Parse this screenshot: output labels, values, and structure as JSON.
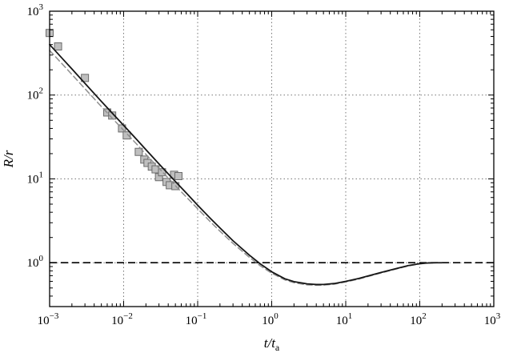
{
  "figure": {
    "background": "#ffffff",
    "frame_color": "#000000",
    "grid_color": "#777777"
  },
  "chart_data": {
    "type": "line",
    "title": "",
    "xlabel": {
      "base": "t/t",
      "sub": "a"
    },
    "ylabel": {
      "base": "R/r",
      "sub": ""
    },
    "x_scale": "log",
    "y_scale": "log",
    "xlim": [
      0.001,
      1000
    ],
    "ylim": [
      0.3,
      1000
    ],
    "x_tick_exponents": [
      -3,
      -2,
      -1,
      0,
      1,
      2,
      3
    ],
    "y_tick_exponents": [
      0,
      1,
      2,
      3
    ],
    "grid": "dotted-at-decades",
    "legend": "none",
    "reference_line": {
      "y": 1,
      "color": "#000000",
      "dash": "9 5",
      "width": 1.6
    },
    "series": [
      {
        "name": "scatter-experimental-squares",
        "type": "scatter",
        "marker": "square",
        "marker_size": 9,
        "fill": "#bfbfbf",
        "edge": "#6b6b6b",
        "points": [
          [
            0.001,
            550
          ],
          [
            0.0013,
            380
          ],
          [
            0.003,
            160
          ],
          [
            0.006,
            62
          ],
          [
            0.007,
            57
          ],
          [
            0.0095,
            40
          ],
          [
            0.011,
            33
          ],
          [
            0.016,
            21
          ],
          [
            0.019,
            17
          ],
          [
            0.021,
            15.5
          ],
          [
            0.024,
            14
          ],
          [
            0.027,
            13
          ],
          [
            0.03,
            10.5
          ],
          [
            0.033,
            12
          ],
          [
            0.038,
            9.2
          ],
          [
            0.042,
            8.4
          ],
          [
            0.048,
            11.2
          ],
          [
            0.05,
            8.2
          ],
          [
            0.055,
            10.8
          ]
        ]
      },
      {
        "name": "model-dashed-gray",
        "type": "line",
        "style": "dashed",
        "color": "#8f8f8f",
        "width": 1.5,
        "dash": "7 4",
        "points": [
          [
            0.001,
            340
          ],
          [
            0.0015,
            232
          ],
          [
            0.002,
            176
          ],
          [
            0.003,
            119
          ],
          [
            0.005,
            73
          ],
          [
            0.007,
            53
          ],
          [
            0.01,
            38
          ],
          [
            0.015,
            26
          ],
          [
            0.02,
            19.6
          ],
          [
            0.03,
            13.4
          ],
          [
            0.05,
            8.3
          ],
          [
            0.07,
            6.1
          ],
          [
            0.1,
            4.4
          ],
          [
            0.15,
            3.05
          ],
          [
            0.2,
            2.38
          ],
          [
            0.3,
            1.7
          ],
          [
            0.5,
            1.16
          ],
          [
            0.7,
            0.92
          ],
          [
            1.0,
            0.75
          ],
          [
            1.5,
            0.625
          ],
          [
            2.0,
            0.578
          ],
          [
            3.0,
            0.545
          ],
          [
            4.0,
            0.538
          ],
          [
            5.0,
            0.54
          ],
          [
            7.0,
            0.555
          ],
          [
            10,
            0.59
          ],
          [
            15,
            0.638
          ],
          [
            20,
            0.685
          ],
          [
            30,
            0.755
          ],
          [
            50,
            0.85
          ],
          [
            70,
            0.915
          ],
          [
            100,
            0.968
          ],
          [
            130,
            0.99
          ],
          [
            170,
            1.0
          ],
          [
            200,
            1.0
          ]
        ]
      },
      {
        "name": "model-solid-black",
        "type": "line",
        "style": "solid",
        "color": "#161616",
        "width": 1.8,
        "dash": "",
        "points": [
          [
            0.001,
            400
          ],
          [
            0.0015,
            270
          ],
          [
            0.002,
            205
          ],
          [
            0.003,
            138
          ],
          [
            0.005,
            84
          ],
          [
            0.007,
            61
          ],
          [
            0.01,
            43.5
          ],
          [
            0.015,
            29.5
          ],
          [
            0.02,
            22.3
          ],
          [
            0.03,
            15.1
          ],
          [
            0.05,
            9.3
          ],
          [
            0.07,
            6.8
          ],
          [
            0.1,
            4.85
          ],
          [
            0.15,
            3.35
          ],
          [
            0.2,
            2.6
          ],
          [
            0.3,
            1.83
          ],
          [
            0.5,
            1.23
          ],
          [
            0.7,
            0.97
          ],
          [
            1.0,
            0.78
          ],
          [
            1.5,
            0.645
          ],
          [
            2.0,
            0.595
          ],
          [
            3.0,
            0.56
          ],
          [
            4.0,
            0.55
          ],
          [
            5.0,
            0.551
          ],
          [
            7.0,
            0.565
          ],
          [
            10,
            0.6
          ],
          [
            15,
            0.65
          ],
          [
            20,
            0.695
          ],
          [
            30,
            0.765
          ],
          [
            50,
            0.86
          ],
          [
            70,
            0.925
          ],
          [
            100,
            0.975
          ],
          [
            130,
            0.995
          ],
          [
            170,
            1.0
          ],
          [
            200,
            1.0
          ]
        ]
      }
    ]
  }
}
